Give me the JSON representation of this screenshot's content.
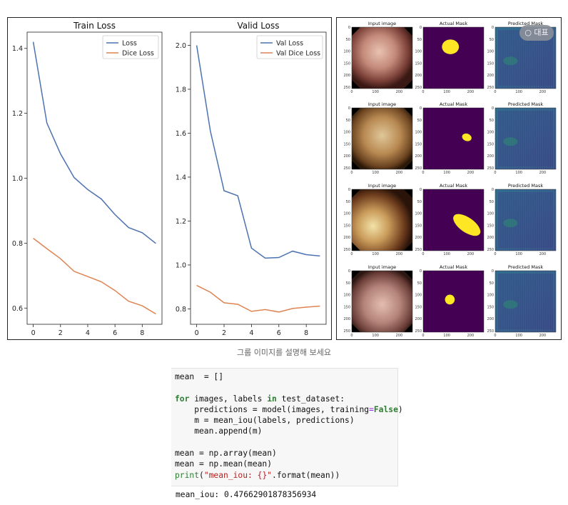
{
  "chart_data": [
    {
      "type": "line",
      "title": "Train Loss",
      "x": [
        0,
        1,
        2,
        3,
        4,
        5,
        6,
        7,
        8,
        9
      ],
      "series": [
        {
          "name": "Loss",
          "color": "#4c72b0",
          "values": [
            1.42,
            1.17,
            1.075,
            1.002,
            0.965,
            0.936,
            0.888,
            0.848,
            0.832,
            0.799
          ]
        },
        {
          "name": "Dice Loss",
          "color": "#dd8452",
          "values": [
            0.815,
            0.783,
            0.752,
            0.713,
            0.697,
            0.681,
            0.654,
            0.621,
            0.607,
            0.582
          ]
        }
      ],
      "xticks": [
        "0",
        "2",
        "4",
        "6",
        "8"
      ],
      "yticks": [
        "0.6",
        "0.8",
        "1.0",
        "1.2",
        "1.4"
      ],
      "xlim": [
        -0.45,
        9.45
      ],
      "ylim": [
        0.55,
        1.45
      ],
      "legend": "top-right",
      "grid": false
    },
    {
      "type": "line",
      "title": "Valid Loss",
      "x": [
        0,
        1,
        2,
        3,
        4,
        5,
        6,
        7,
        8,
        9
      ],
      "series": [
        {
          "name": "Val Loss",
          "color": "#4c72b0",
          "values": [
            2.0,
            1.61,
            1.338,
            1.315,
            1.077,
            1.031,
            1.034,
            1.063,
            1.047,
            1.041
          ]
        },
        {
          "name": "Val Dice Loss",
          "color": "#dd8452",
          "values": [
            0.907,
            0.876,
            0.828,
            0.821,
            0.789,
            0.797,
            0.786,
            0.802,
            0.808,
            0.813
          ]
        }
      ],
      "xticks": [
        "0",
        "2",
        "4",
        "6",
        "8"
      ],
      "yticks": [
        "0.8",
        "1.0",
        "1.2",
        "1.4",
        "1.6",
        "1.8",
        "2.0"
      ],
      "xlim": [
        -0.45,
        9.45
      ],
      "ylim": [
        0.73,
        2.06
      ],
      "legend": "top-right",
      "grid": false
    }
  ],
  "mask_panel": {
    "columns": [
      "Input image",
      "Actual Mask",
      "Predicted Mask"
    ],
    "y_ticks": [
      "0",
      "50",
      "100",
      "150",
      "200",
      "250"
    ],
    "x_ticks": [
      "0",
      "100",
      "200"
    ]
  },
  "caption": "그룹 이미지를 설명해 보세요",
  "alt_badge": "대표",
  "code": {
    "l1_var": "mean",
    "l1_rest": " = []",
    "l3_for": "for",
    "l3_mid": " images, labels ",
    "l3_in": "in",
    "l3_end": " test_dataset:",
    "l4_a": "    predictions = model(images, training",
    "l4_eq": "=",
    "l4_false": "False",
    "l4_close": ")",
    "l5": "    m = mean_iou(labels, predictions)",
    "l6": "    mean.append(m)",
    "l8": "mean = np.array(mean)",
    "l9": "mean = np.mean(mean)",
    "l10_print": "print",
    "l10_open": "(",
    "l10_str": "\"mean_iou: {}\"",
    "l10_rest": ".format(mean))"
  },
  "output": "mean_iou: 0.47662901878356934"
}
